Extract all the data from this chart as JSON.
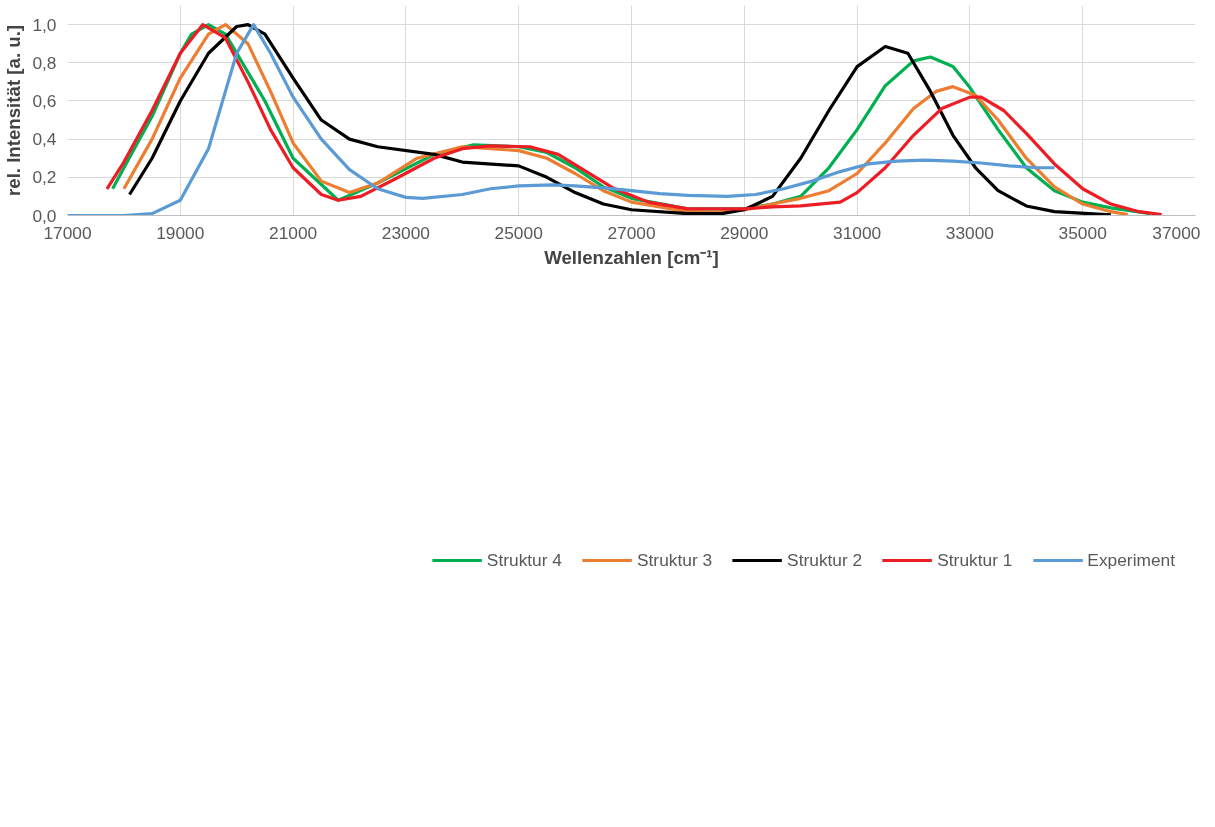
{
  "chart_data": {
    "type": "line",
    "xlabel": "Wellenzahlen [cm⁻¹]",
    "ylabel": "rel. Intensität [a. u.]",
    "xlim": [
      17000,
      37000
    ],
    "xticks": [
      17000,
      19000,
      21000,
      23000,
      25000,
      27000,
      29000,
      31000,
      33000,
      35000,
      37000
    ],
    "ylim": [
      0,
      1.1
    ],
    "yticks": [
      {
        "value": 0,
        "label": "0,0"
      },
      {
        "value": 0.2,
        "label": "0,2"
      },
      {
        "value": 0.4,
        "label": "0,4"
      },
      {
        "value": 0.6,
        "label": "0,6"
      },
      {
        "value": 0.8,
        "label": "0,8"
      },
      {
        "value": 1.0,
        "label": "1,0"
      }
    ],
    "grid": true,
    "legend": "bottom",
    "marker": "none",
    "line_style": "solid",
    "series": [
      {
        "name": "Struktur 4",
        "color": "#00b050",
        "x": [
          17800,
          18000,
          18500,
          19000,
          19200,
          19500,
          19800,
          20200,
          20500,
          21000,
          21800,
          22500,
          23500,
          24200,
          25000,
          25500,
          26000,
          26500,
          27000,
          28000,
          29000,
          29500,
          30000,
          30500,
          31000,
          31500,
          32000,
          32300,
          32700,
          33000,
          33500,
          34000,
          34500,
          35000,
          35500,
          36200
        ],
        "values": [
          0.14,
          0.25,
          0.52,
          0.85,
          0.95,
          1.0,
          0.95,
          0.75,
          0.6,
          0.3,
          0.08,
          0.17,
          0.32,
          0.37,
          0.36,
          0.33,
          0.25,
          0.15,
          0.09,
          0.035,
          0.035,
          0.06,
          0.1,
          0.25,
          0.45,
          0.68,
          0.81,
          0.83,
          0.78,
          0.67,
          0.45,
          0.25,
          0.13,
          0.07,
          0.04,
          0.01
        ]
      },
      {
        "name": "Struktur 3",
        "color": "#ed7d31",
        "x": [
          18000,
          18500,
          19000,
          19500,
          19800,
          20200,
          20600,
          21000,
          21500,
          22000,
          22500,
          23200,
          24000,
          24500,
          25000,
          25500,
          26000,
          26500,
          27000,
          28000,
          28500,
          29000,
          29500,
          30000,
          30500,
          31000,
          31500,
          32000,
          32400,
          32700,
          33100,
          33500,
          34000,
          34500,
          35000,
          35500,
          35800
        ],
        "values": [
          0.14,
          0.4,
          0.72,
          0.95,
          1.0,
          0.9,
          0.65,
          0.38,
          0.18,
          0.12,
          0.17,
          0.3,
          0.36,
          0.35,
          0.34,
          0.3,
          0.22,
          0.13,
          0.07,
          0.02,
          0.015,
          0.03,
          0.06,
          0.09,
          0.13,
          0.22,
          0.38,
          0.56,
          0.65,
          0.675,
          0.63,
          0.5,
          0.3,
          0.15,
          0.06,
          0.02,
          0.005
        ]
      },
      {
        "name": "Struktur 2",
        "color": "#000000",
        "x": [
          18100,
          18500,
          19000,
          19500,
          20000,
          20200,
          20500,
          21000,
          21500,
          22000,
          22500,
          23500,
          24000,
          25000,
          25500,
          26000,
          26500,
          27000,
          28000,
          28600,
          29000,
          29500,
          30000,
          30500,
          31000,
          31500,
          31900,
          32300,
          32700,
          33100,
          33500,
          34000,
          34500,
          35500
        ],
        "values": [
          0.11,
          0.3,
          0.6,
          0.85,
          0.99,
          1.0,
          0.95,
          0.72,
          0.5,
          0.4,
          0.36,
          0.32,
          0.28,
          0.26,
          0.2,
          0.12,
          0.06,
          0.03,
          0.01,
          0.01,
          0.03,
          0.1,
          0.3,
          0.55,
          0.78,
          0.885,
          0.85,
          0.65,
          0.42,
          0.25,
          0.13,
          0.05,
          0.02,
          0.003
        ]
      },
      {
        "name": "Struktur 1",
        "color": "#ee1c25",
        "x": [
          17700,
          18000,
          18500,
          19000,
          19400,
          19800,
          20200,
          20600,
          21000,
          21500,
          21800,
          22200,
          22800,
          23500,
          24000,
          24500,
          25200,
          25700,
          26200,
          26700,
          27300,
          28000,
          29000,
          29500,
          30000,
          30700,
          31000,
          31500,
          32000,
          32500,
          33000,
          33200,
          33600,
          34000,
          34500,
          35000,
          35500,
          36000,
          36400
        ],
        "values": [
          0.14,
          0.28,
          0.55,
          0.85,
          1.0,
          0.93,
          0.7,
          0.45,
          0.25,
          0.11,
          0.08,
          0.1,
          0.19,
          0.3,
          0.35,
          0.365,
          0.36,
          0.32,
          0.23,
          0.14,
          0.07,
          0.035,
          0.035,
          0.045,
          0.05,
          0.07,
          0.12,
          0.25,
          0.42,
          0.56,
          0.62,
          0.62,
          0.55,
          0.43,
          0.27,
          0.14,
          0.06,
          0.02,
          0.005
        ]
      },
      {
        "name": "Experiment",
        "color": "#5b9bd5",
        "x": [
          17000,
          18000,
          18500,
          19000,
          19500,
          19800,
          20000,
          20300,
          20600,
          21000,
          21500,
          22000,
          22500,
          23000,
          23300,
          24000,
          24500,
          25000,
          25600,
          26000,
          26500,
          27000,
          27500,
          28000,
          28700,
          29200,
          29700,
          30200,
          30700,
          31200,
          31700,
          32200,
          32700,
          33200,
          33700,
          34200,
          34500
        ],
        "values": [
          0.0,
          0.0,
          0.01,
          0.08,
          0.35,
          0.65,
          0.85,
          1.0,
          0.85,
          0.62,
          0.4,
          0.24,
          0.14,
          0.095,
          0.09,
          0.11,
          0.14,
          0.155,
          0.16,
          0.155,
          0.145,
          0.13,
          0.115,
          0.105,
          0.1,
          0.11,
          0.14,
          0.18,
          0.23,
          0.27,
          0.285,
          0.29,
          0.285,
          0.275,
          0.26,
          0.25,
          0.25
        ]
      }
    ]
  }
}
